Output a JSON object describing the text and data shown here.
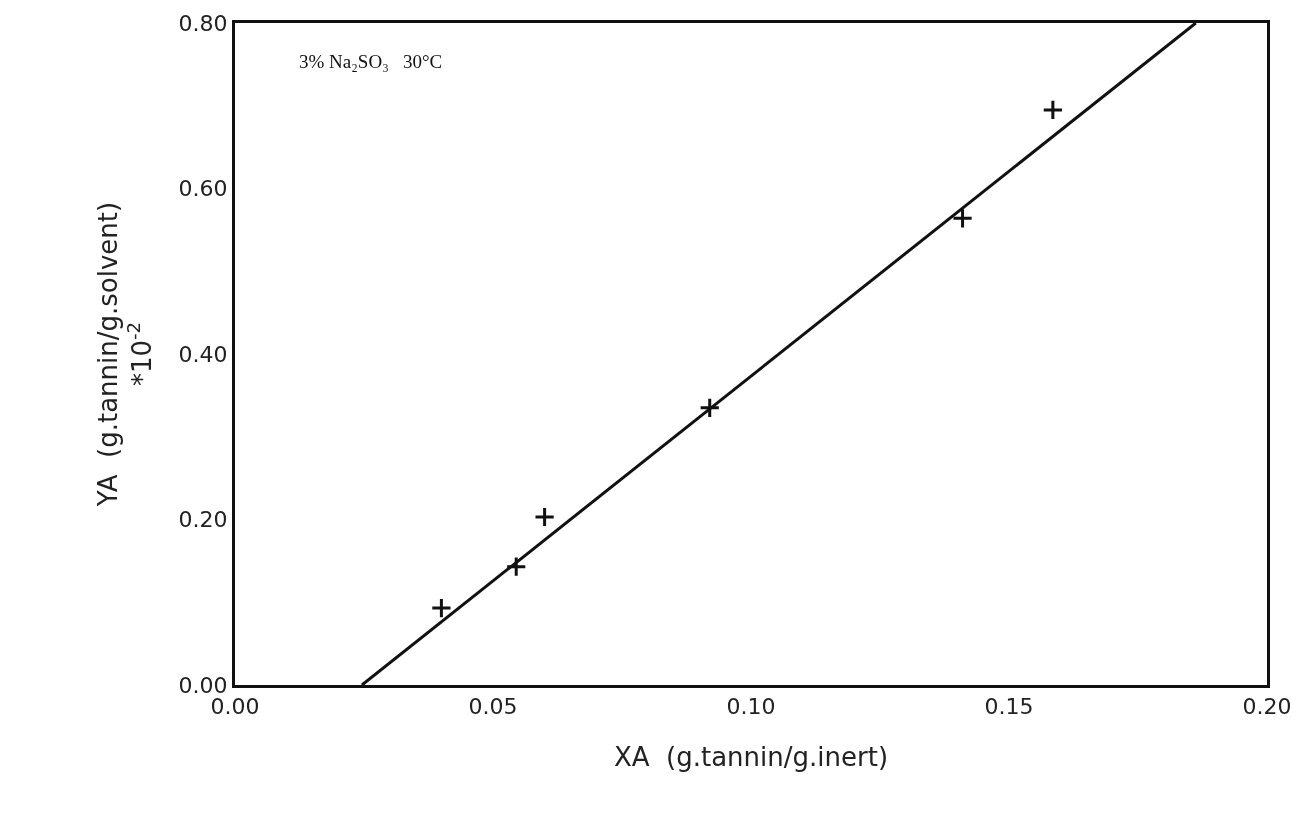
{
  "chart_data": {
    "type": "scatter",
    "xlabel": "XA  (g.tannin/g.inert)",
    "ylabel": "YA  (g.tannin/g.solvent)\n*10$^{-2}$",
    "annotations": [
      "3% Na₂SO₃   30°C"
    ],
    "x": [
      0.04,
      0.0545,
      0.06,
      0.092,
      0.141,
      0.1585
    ],
    "series": [
      {
        "values": [
          0.093,
          0.143,
          0.203,
          0.335,
          0.564,
          0.695
        ],
        "color": "#111111",
        "marker": "cross"
      },
      {
        "type": "line",
        "x": [
          0.0246,
          0.1862
        ],
        "values": [
          0,
          0.8
        ],
        "color": "#111111",
        "marker": "none",
        "line_style": "solid"
      }
    ],
    "xlim": [
      0,
      0.2
    ],
    "ylim": [
      0,
      0.8
    ],
    "xticks": [
      {
        "value": 0,
        "label": "0.00"
      },
      {
        "value": 0.05,
        "label": "0.05"
      },
      {
        "value": 0.1,
        "label": "0.10"
      },
      {
        "value": 0.15,
        "label": "0.15"
      },
      {
        "value": 0.2,
        "label": "0.20"
      }
    ],
    "yticks": [
      {
        "value": 0,
        "label": "0.00"
      },
      {
        "value": 0.2,
        "label": "0.20"
      },
      {
        "value": 0.4,
        "label": "0.40"
      },
      {
        "value": 0.6,
        "label": "0.60"
      },
      {
        "value": 0.8,
        "label": "0.80"
      }
    ],
    "grid": false
  }
}
